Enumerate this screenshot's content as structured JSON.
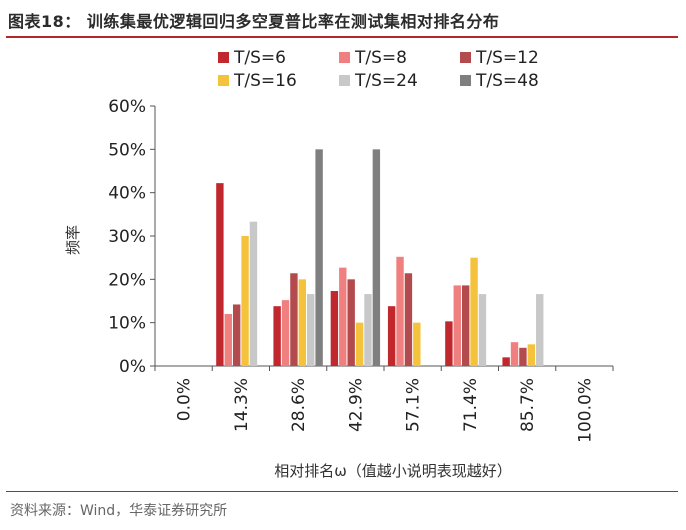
{
  "figure": {
    "title": "图表18：  训练集最优逻辑回归多空夏普比率在测试集相对排名分布",
    "source": "资料来源：Wind，华泰证券研究所"
  },
  "chart_data": {
    "type": "bar",
    "xlabel": "相对排名ω（值越小说明表现越好）",
    "ylabel": "频率",
    "ylim": [
      0,
      60
    ],
    "yticks": [
      "0%",
      "10%",
      "20%",
      "30%",
      "40%",
      "50%",
      "60%"
    ],
    "categories": [
      "0.0%",
      "14.3%",
      "28.6%",
      "42.9%",
      "57.1%",
      "71.4%",
      "85.7%",
      "100.0%"
    ],
    "legend_position": "top",
    "grid": false,
    "series": [
      {
        "name": "T/S=6",
        "color": "#c0282d",
        "values": [
          0,
          42.2,
          13.8,
          17.3,
          13.8,
          10.3,
          2.0,
          0
        ]
      },
      {
        "name": "T/S=8",
        "color": "#f08080",
        "values": [
          0,
          12.0,
          15.2,
          22.7,
          25.2,
          18.6,
          5.5,
          0
        ]
      },
      {
        "name": "T/S=12",
        "color": "#b24a4e",
        "values": [
          0,
          14.2,
          21.4,
          20.0,
          21.4,
          18.6,
          4.2,
          0
        ]
      },
      {
        "name": "T/S=16",
        "color": "#f5c33b",
        "values": [
          0,
          30.0,
          20.0,
          10.0,
          10.0,
          25.0,
          5.0,
          0
        ]
      },
      {
        "name": "T/S=24",
        "color": "#c8c8c8",
        "values": [
          0,
          33.3,
          16.6,
          16.6,
          0,
          16.6,
          16.6,
          0
        ]
      },
      {
        "name": "T/S=48",
        "color": "#7f7f7f",
        "values": [
          0,
          0,
          50.0,
          50.0,
          0,
          0,
          0,
          0
        ]
      }
    ]
  }
}
